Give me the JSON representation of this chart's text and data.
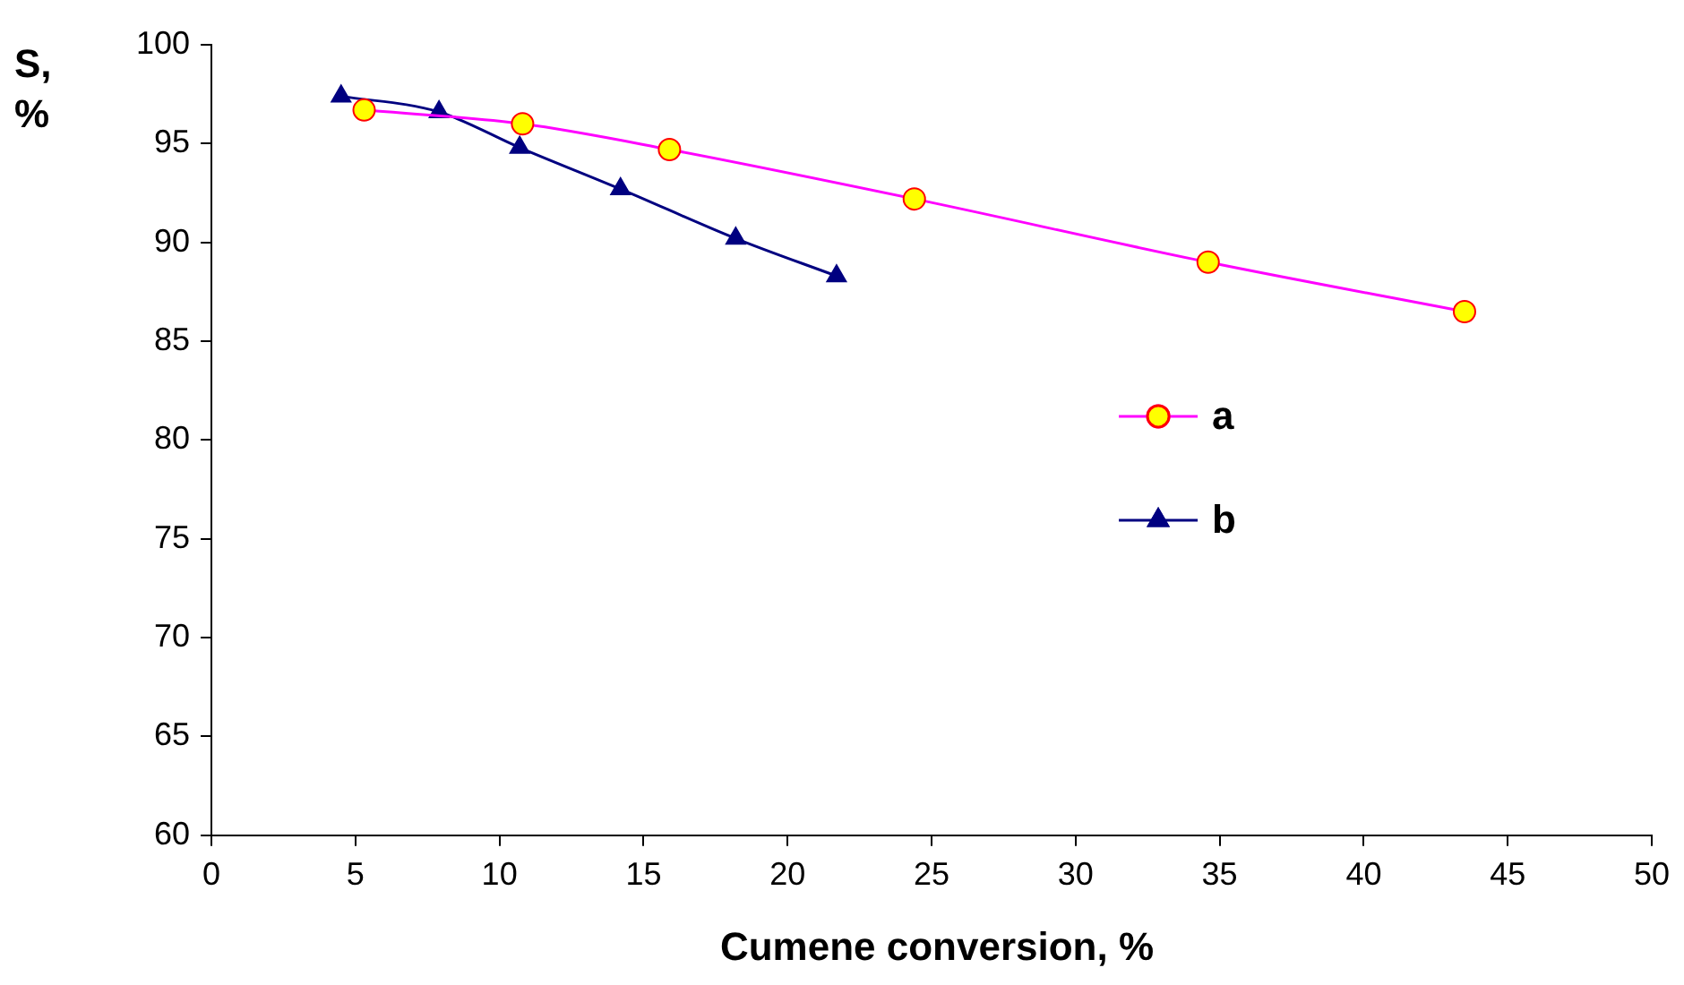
{
  "chart_data": {
    "type": "line",
    "xlabel": "Cumene conversion, %",
    "ylabel": "S, %",
    "xlim": [
      0,
      50
    ],
    "xticks": [
      0,
      5,
      10,
      15,
      20,
      25,
      30,
      35,
      40,
      45,
      50
    ],
    "ylim": [
      60,
      100
    ],
    "yticks": [
      60,
      65,
      70,
      75,
      80,
      85,
      90,
      95,
      100
    ],
    "grid": false,
    "legend": "right",
    "series": [
      {
        "name": "a",
        "color": "#ff00ff",
        "marker": "circle",
        "x": [
          5.3,
          10.8,
          15.9,
          24.4,
          34.6,
          43.5
        ],
        "values": [
          96.7,
          96.0,
          94.7,
          92.2,
          89.0,
          86.5
        ]
      },
      {
        "name": "b",
        "color": "#000080",
        "marker": "triangle",
        "x": [
          4.5,
          7.9,
          10.7,
          14.2,
          18.2,
          21.7
        ],
        "values": [
          97.4,
          96.6,
          94.8,
          92.7,
          90.2,
          88.3
        ]
      }
    ]
  }
}
